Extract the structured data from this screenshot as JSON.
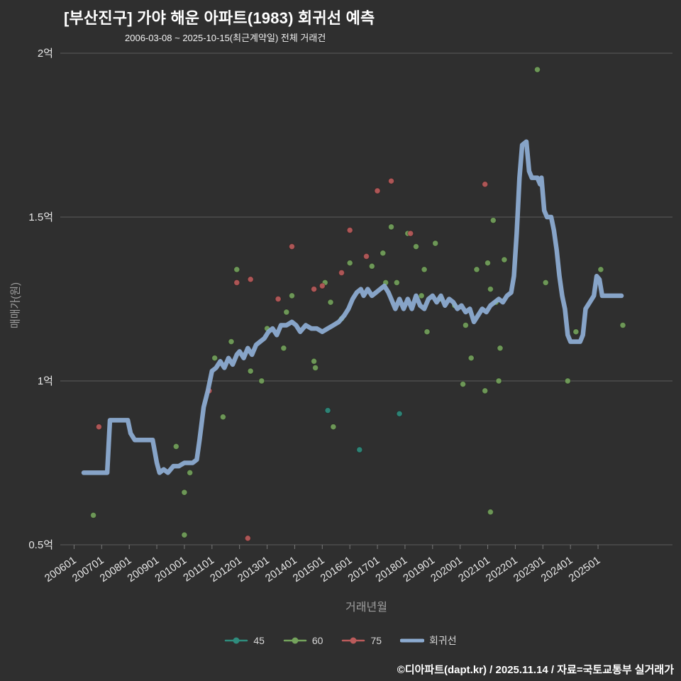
{
  "footer": "©디아파트(dapt.kr) / 2025.11.14 / 자료=국토교통부 실거래가",
  "colors": {
    "background": "#2f2f2f",
    "grid": "#8a8a8a",
    "tick_text": "#e8e8e8",
    "axis_label_text": "#9e9e9e",
    "series_45": "#2f8c7d",
    "series_60": "#74a35c",
    "series_75": "#bb5b5b",
    "regression": "#8cabd1"
  },
  "chart_data": {
    "type": "scatter",
    "title": "[부산진구] 가야 해운 아파트(1983) 회귀선 예측",
    "subtitle": "2006-03-08 ~ 2025-10-15(최근계약일) 전체 거래건",
    "xlabel": "거래년월",
    "ylabel": "매매가(원)",
    "x_domain": [
      2005.5,
      2027.7
    ],
    "y_domain": [
      0.5,
      2.0
    ],
    "yticks": [
      {
        "value": 2.0,
        "label": "2억"
      },
      {
        "value": 1.5,
        "label": "1.5억"
      },
      {
        "value": 1.0,
        "label": "1억"
      },
      {
        "value": 0.5,
        "label": "0.5억"
      }
    ],
    "xticks": [
      {
        "value": 2006,
        "label": "200601"
      },
      {
        "value": 2007,
        "label": "200701"
      },
      {
        "value": 2008,
        "label": "200801"
      },
      {
        "value": 2009,
        "label": "200901"
      },
      {
        "value": 2010,
        "label": "201001"
      },
      {
        "value": 2011,
        "label": "201101"
      },
      {
        "value": 2012,
        "label": "201201"
      },
      {
        "value": 2013,
        "label": "201301"
      },
      {
        "value": 2014,
        "label": "201401"
      },
      {
        "value": 2015,
        "label": "201501"
      },
      {
        "value": 2016,
        "label": "201601"
      },
      {
        "value": 2017,
        "label": "201701"
      },
      {
        "value": 2018,
        "label": "201801"
      },
      {
        "value": 2019,
        "label": "201901"
      },
      {
        "value": 2020,
        "label": "202001"
      },
      {
        "value": 2021,
        "label": "202101"
      },
      {
        "value": 2022,
        "label": "202201"
      },
      {
        "value": 2023,
        "label": "202301"
      },
      {
        "value": 2024,
        "label": "202401"
      },
      {
        "value": 2025,
        "label": "202501"
      }
    ],
    "legend": [
      {
        "label": "45",
        "color": "#2f8c7d",
        "marker": "line-dot"
      },
      {
        "label": "60",
        "color": "#74a35c",
        "marker": "line-dot"
      },
      {
        "label": "75",
        "color": "#bb5b5b",
        "marker": "line-dot"
      },
      {
        "label": "회귀선",
        "color": "#8cabd1",
        "marker": "thick-line"
      }
    ],
    "series": [
      {
        "name": "45",
        "type": "scatter",
        "color": "#2f8c7d",
        "points": [
          [
            2015.2,
            0.91
          ],
          [
            2016.35,
            0.79
          ],
          [
            2017.8,
            0.9
          ]
        ]
      },
      {
        "name": "60",
        "type": "scatter",
        "color": "#74a35c",
        "points": [
          [
            2006.7,
            0.59
          ],
          [
            2009.7,
            0.8
          ],
          [
            2010.0,
            0.66
          ],
          [
            2010.0,
            0.53
          ],
          [
            2010.2,
            0.72
          ],
          [
            2011.1,
            1.07
          ],
          [
            2011.4,
            0.89
          ],
          [
            2011.7,
            1.12
          ],
          [
            2011.9,
            1.34
          ],
          [
            2012.4,
            1.03
          ],
          [
            2012.8,
            1.0
          ],
          [
            2013.0,
            1.16
          ],
          [
            2013.6,
            1.1
          ],
          [
            2013.7,
            1.21
          ],
          [
            2013.9,
            1.26
          ],
          [
            2014.7,
            1.06
          ],
          [
            2014.75,
            1.04
          ],
          [
            2015.1,
            1.3
          ],
          [
            2015.3,
            1.24
          ],
          [
            2015.4,
            0.86
          ],
          [
            2015.7,
            1.19
          ],
          [
            2016.0,
            1.36
          ],
          [
            2016.8,
            1.35
          ],
          [
            2017.2,
            1.39
          ],
          [
            2017.3,
            1.3
          ],
          [
            2017.5,
            1.47
          ],
          [
            2017.7,
            1.3
          ],
          [
            2018.1,
            1.45
          ],
          [
            2018.4,
            1.41
          ],
          [
            2018.6,
            1.26
          ],
          [
            2018.7,
            1.34
          ],
          [
            2018.8,
            1.15
          ],
          [
            2019.1,
            1.42
          ],
          [
            2019.3,
            1.25
          ],
          [
            2019.8,
            1.23
          ],
          [
            2020.1,
            0.99
          ],
          [
            2020.2,
            1.17
          ],
          [
            2020.4,
            1.07
          ],
          [
            2020.6,
            1.34
          ],
          [
            2020.9,
            0.97
          ],
          [
            2021.0,
            1.36
          ],
          [
            2021.1,
            1.28
          ],
          [
            2021.1,
            0.6
          ],
          [
            2021.2,
            1.49
          ],
          [
            2021.3,
            1.24
          ],
          [
            2021.4,
            1.0
          ],
          [
            2021.45,
            1.1
          ],
          [
            2021.6,
            1.37
          ],
          [
            2022.8,
            1.95
          ],
          [
            2023.1,
            1.3
          ],
          [
            2023.9,
            1.0
          ],
          [
            2024.2,
            1.15
          ],
          [
            2025.1,
            1.34
          ],
          [
            2025.9,
            1.17
          ]
        ]
      },
      {
        "name": "75",
        "type": "scatter",
        "color": "#bb5b5b",
        "points": [
          [
            2006.9,
            0.86
          ],
          [
            2010.9,
            0.97
          ],
          [
            2011.9,
            1.3
          ],
          [
            2012.3,
            0.52
          ],
          [
            2012.4,
            1.31
          ],
          [
            2013.4,
            1.25
          ],
          [
            2013.9,
            1.41
          ],
          [
            2014.7,
            1.28
          ],
          [
            2015.0,
            1.29
          ],
          [
            2015.7,
            1.33
          ],
          [
            2016.0,
            1.46
          ],
          [
            2016.6,
            1.38
          ],
          [
            2017.0,
            1.58
          ],
          [
            2017.5,
            1.61
          ],
          [
            2018.2,
            1.45
          ],
          [
            2020.9,
            1.6
          ]
        ]
      },
      {
        "name": "회귀선",
        "type": "line",
        "color": "#8cabd1",
        "width": 6.5,
        "points": [
          [
            2006.35,
            0.72
          ],
          [
            2007.2,
            0.72
          ],
          [
            2007.3,
            0.88
          ],
          [
            2007.95,
            0.88
          ],
          [
            2008.05,
            0.84
          ],
          [
            2008.2,
            0.82
          ],
          [
            2008.85,
            0.82
          ],
          [
            2009.0,
            0.75
          ],
          [
            2009.1,
            0.72
          ],
          [
            2009.25,
            0.73
          ],
          [
            2009.4,
            0.72
          ],
          [
            2009.6,
            0.74
          ],
          [
            2009.8,
            0.74
          ],
          [
            2010.0,
            0.75
          ],
          [
            2010.3,
            0.75
          ],
          [
            2010.45,
            0.76
          ],
          [
            2010.55,
            0.82
          ],
          [
            2010.7,
            0.92
          ],
          [
            2010.85,
            0.97
          ],
          [
            2011.0,
            1.03
          ],
          [
            2011.15,
            1.04
          ],
          [
            2011.3,
            1.06
          ],
          [
            2011.45,
            1.04
          ],
          [
            2011.6,
            1.07
          ],
          [
            2011.75,
            1.05
          ],
          [
            2011.9,
            1.08
          ],
          [
            2012.0,
            1.09
          ],
          [
            2012.15,
            1.07
          ],
          [
            2012.3,
            1.1
          ],
          [
            2012.45,
            1.08
          ],
          [
            2012.6,
            1.11
          ],
          [
            2012.75,
            1.12
          ],
          [
            2012.9,
            1.13
          ],
          [
            2013.05,
            1.15
          ],
          [
            2013.2,
            1.16
          ],
          [
            2013.35,
            1.14
          ],
          [
            2013.5,
            1.17
          ],
          [
            2013.7,
            1.17
          ],
          [
            2013.9,
            1.18
          ],
          [
            2014.05,
            1.17
          ],
          [
            2014.2,
            1.15
          ],
          [
            2014.4,
            1.17
          ],
          [
            2014.6,
            1.16
          ],
          [
            2014.8,
            1.16
          ],
          [
            2015.0,
            1.15
          ],
          [
            2015.2,
            1.16
          ],
          [
            2015.4,
            1.17
          ],
          [
            2015.6,
            1.18
          ],
          [
            2015.8,
            1.2
          ],
          [
            2015.95,
            1.22
          ],
          [
            2016.1,
            1.25
          ],
          [
            2016.25,
            1.27
          ],
          [
            2016.4,
            1.28
          ],
          [
            2016.5,
            1.26
          ],
          [
            2016.65,
            1.28
          ],
          [
            2016.8,
            1.26
          ],
          [
            2016.95,
            1.27
          ],
          [
            2017.1,
            1.28
          ],
          [
            2017.25,
            1.29
          ],
          [
            2017.4,
            1.27
          ],
          [
            2017.5,
            1.25
          ],
          [
            2017.65,
            1.22
          ],
          [
            2017.8,
            1.25
          ],
          [
            2017.95,
            1.22
          ],
          [
            2018.1,
            1.25
          ],
          [
            2018.25,
            1.22
          ],
          [
            2018.4,
            1.26
          ],
          [
            2018.55,
            1.23
          ],
          [
            2018.7,
            1.22
          ],
          [
            2018.85,
            1.25
          ],
          [
            2019.0,
            1.26
          ],
          [
            2019.15,
            1.24
          ],
          [
            2019.3,
            1.26
          ],
          [
            2019.45,
            1.23
          ],
          [
            2019.6,
            1.25
          ],
          [
            2019.75,
            1.24
          ],
          [
            2019.9,
            1.22
          ],
          [
            2020.05,
            1.23
          ],
          [
            2020.2,
            1.21
          ],
          [
            2020.35,
            1.22
          ],
          [
            2020.5,
            1.18
          ],
          [
            2020.65,
            1.2
          ],
          [
            2020.8,
            1.22
          ],
          [
            2020.95,
            1.21
          ],
          [
            2021.1,
            1.23
          ],
          [
            2021.25,
            1.24
          ],
          [
            2021.4,
            1.25
          ],
          [
            2021.55,
            1.24
          ],
          [
            2021.7,
            1.26
          ],
          [
            2021.85,
            1.27
          ],
          [
            2021.95,
            1.32
          ],
          [
            2022.05,
            1.45
          ],
          [
            2022.15,
            1.62
          ],
          [
            2022.25,
            1.72
          ],
          [
            2022.4,
            1.73
          ],
          [
            2022.5,
            1.64
          ],
          [
            2022.6,
            1.62
          ],
          [
            2022.8,
            1.62
          ],
          [
            2022.9,
            1.6
          ],
          [
            2022.95,
            1.62
          ],
          [
            2023.05,
            1.52
          ],
          [
            2023.15,
            1.5
          ],
          [
            2023.3,
            1.5
          ],
          [
            2023.4,
            1.46
          ],
          [
            2023.5,
            1.4
          ],
          [
            2023.6,
            1.32
          ],
          [
            2023.7,
            1.26
          ],
          [
            2023.8,
            1.22
          ],
          [
            2023.9,
            1.14
          ],
          [
            2024.0,
            1.12
          ],
          [
            2024.35,
            1.12
          ],
          [
            2024.45,
            1.14
          ],
          [
            2024.55,
            1.22
          ],
          [
            2024.7,
            1.24
          ],
          [
            2024.85,
            1.26
          ],
          [
            2024.95,
            1.32
          ],
          [
            2025.05,
            1.31
          ],
          [
            2025.15,
            1.26
          ],
          [
            2025.4,
            1.26
          ],
          [
            2025.85,
            1.26
          ]
        ]
      }
    ]
  }
}
